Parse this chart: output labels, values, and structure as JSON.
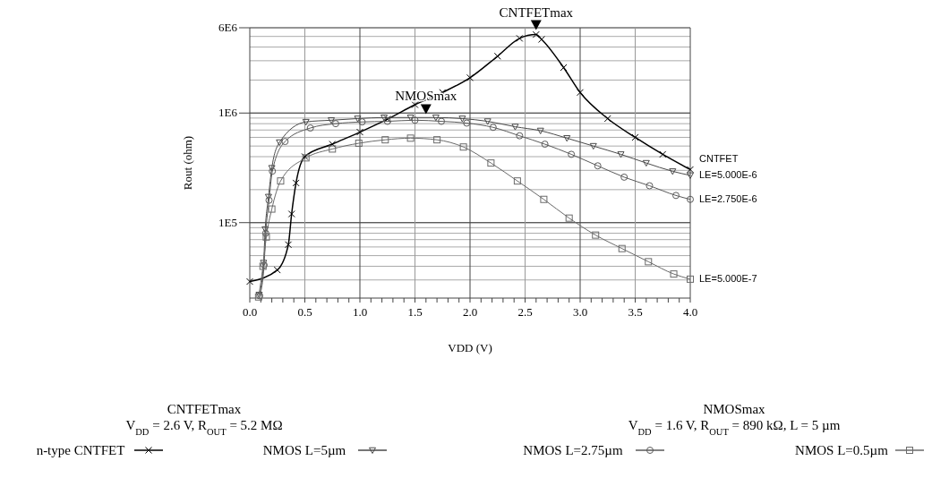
{
  "chart_data": {
    "type": "line",
    "xlabel": "VDD (V)",
    "ylabel": "Rout (ohm)",
    "xlim": [
      0,
      4
    ],
    "xticks": [
      {
        "value": 0,
        "label": "0.0"
      },
      {
        "value": 0.5,
        "label": "0.5"
      },
      {
        "value": 1,
        "label": "1.0"
      },
      {
        "value": 1.5,
        "label": "1.5"
      },
      {
        "value": 2,
        "label": "2.0"
      },
      {
        "value": 2.5,
        "label": "2.5"
      },
      {
        "value": 3,
        "label": "3.0"
      },
      {
        "value": 3.5,
        "label": "3.5"
      },
      {
        "value": 4,
        "label": "4.0"
      }
    ],
    "ylim": [
      20500,
      6000000
    ],
    "yticks": [
      {
        "value": 100000,
        "label": "1E5"
      },
      {
        "value": 1000000,
        "label": "1E6"
      },
      {
        "value": 6000000,
        "label": "6E6"
      }
    ],
    "log": "y",
    "grid": true,
    "legend": "bottom",
    "series": [
      {
        "name": "n-type CNTFET",
        "color": "#000000",
        "marker": "cross",
        "x": [
          0.0,
          0.25,
          0.35,
          0.38,
          0.42,
          0.5,
          0.75,
          1.0,
          1.25,
          1.5,
          1.75,
          2.0,
          2.25,
          2.45,
          2.6,
          2.65,
          2.85,
          3.0,
          3.25,
          3.5,
          3.75,
          4.0
        ],
        "values": [
          29000,
          37000,
          63000,
          120000,
          230000,
          400000,
          520000,
          670000,
          880000,
          1190000,
          1540000,
          2100000,
          3300000,
          4800000,
          5200000,
          4700000,
          2600000,
          1540000,
          890000,
          600000,
          420000,
          305000
        ]
      },
      {
        "name": "NMOS L=5µm",
        "color": "#4a4a4a",
        "marker": "triangle",
        "x": [
          0.085,
          0.125,
          0.14,
          0.17,
          0.2,
          0.27,
          0.51,
          0.74,
          0.98,
          1.22,
          1.46,
          1.69,
          1.93,
          2.16,
          2.41,
          2.64,
          2.88,
          3.12,
          3.37,
          3.6,
          3.84,
          4.0
        ],
        "values": [
          22000,
          43000,
          87000,
          172000,
          315000,
          540000,
          830000,
          860000,
          890000,
          910000,
          910000,
          910000,
          890000,
          840000,
          750000,
          690000,
          590000,
          500000,
          420000,
          350000,
          294000,
          270000
        ]
      },
      {
        "name": "NMOS L=2.75µm",
        "color": "#5a5a5a",
        "marker": "circle",
        "x": [
          0.09,
          0.13,
          0.145,
          0.175,
          0.205,
          0.32,
          0.55,
          0.78,
          1.02,
          1.25,
          1.5,
          1.74,
          1.97,
          2.21,
          2.45,
          2.68,
          2.92,
          3.16,
          3.4,
          3.63,
          3.87,
          4.0
        ],
        "values": [
          21500,
          41000,
          80000,
          160000,
          295000,
          550000,
          730000,
          800000,
          830000,
          840000,
          860000,
          840000,
          810000,
          740000,
          620000,
          520000,
          420000,
          330000,
          260000,
          217000,
          177000,
          163000
        ]
      },
      {
        "name": "NMOS L=0.5µm",
        "color": "#6a6a6a",
        "marker": "square",
        "x": [
          0.08,
          0.12,
          0.15,
          0.2,
          0.28,
          0.51,
          0.75,
          0.99,
          1.23,
          1.46,
          1.7,
          1.94,
          2.19,
          2.43,
          2.67,
          2.9,
          3.14,
          3.38,
          3.62,
          3.85,
          4.0
        ],
        "values": [
          21000,
          40000,
          74000,
          133000,
          240000,
          390000,
          470000,
          530000,
          570000,
          590000,
          570000,
          490000,
          350000,
          240000,
          163000,
          110000,
          77000,
          58000,
          44000,
          34000,
          30500
        ]
      }
    ],
    "annotations": [
      {
        "text": "CNTFETmax",
        "x": 2.6,
        "y": 5200000
      },
      {
        "text": "NMOSmax",
        "x": 1.6,
        "y": 890000
      },
      {
        "text": "CNTFET",
        "x": 4.0,
        "y": 305000
      },
      {
        "text": "LE=5.000E-6",
        "x": 4.0,
        "y": 270000
      },
      {
        "text": "LE=2.750E-6",
        "x": 4.0,
        "y": 163000
      },
      {
        "text": "LE=5.000E-7",
        "x": 4.0,
        "y": 30500
      },
      "CNTFETmax\nV$_{DD}$ = 2.6 V, R$_{OUT}$ = 5.2 MΩ",
      "NMOSmax\nV$_{DD}$ = 1.6 V, R$_{OUT}$ = 890 kΩ, L = 5 µm"
    ]
  }
}
